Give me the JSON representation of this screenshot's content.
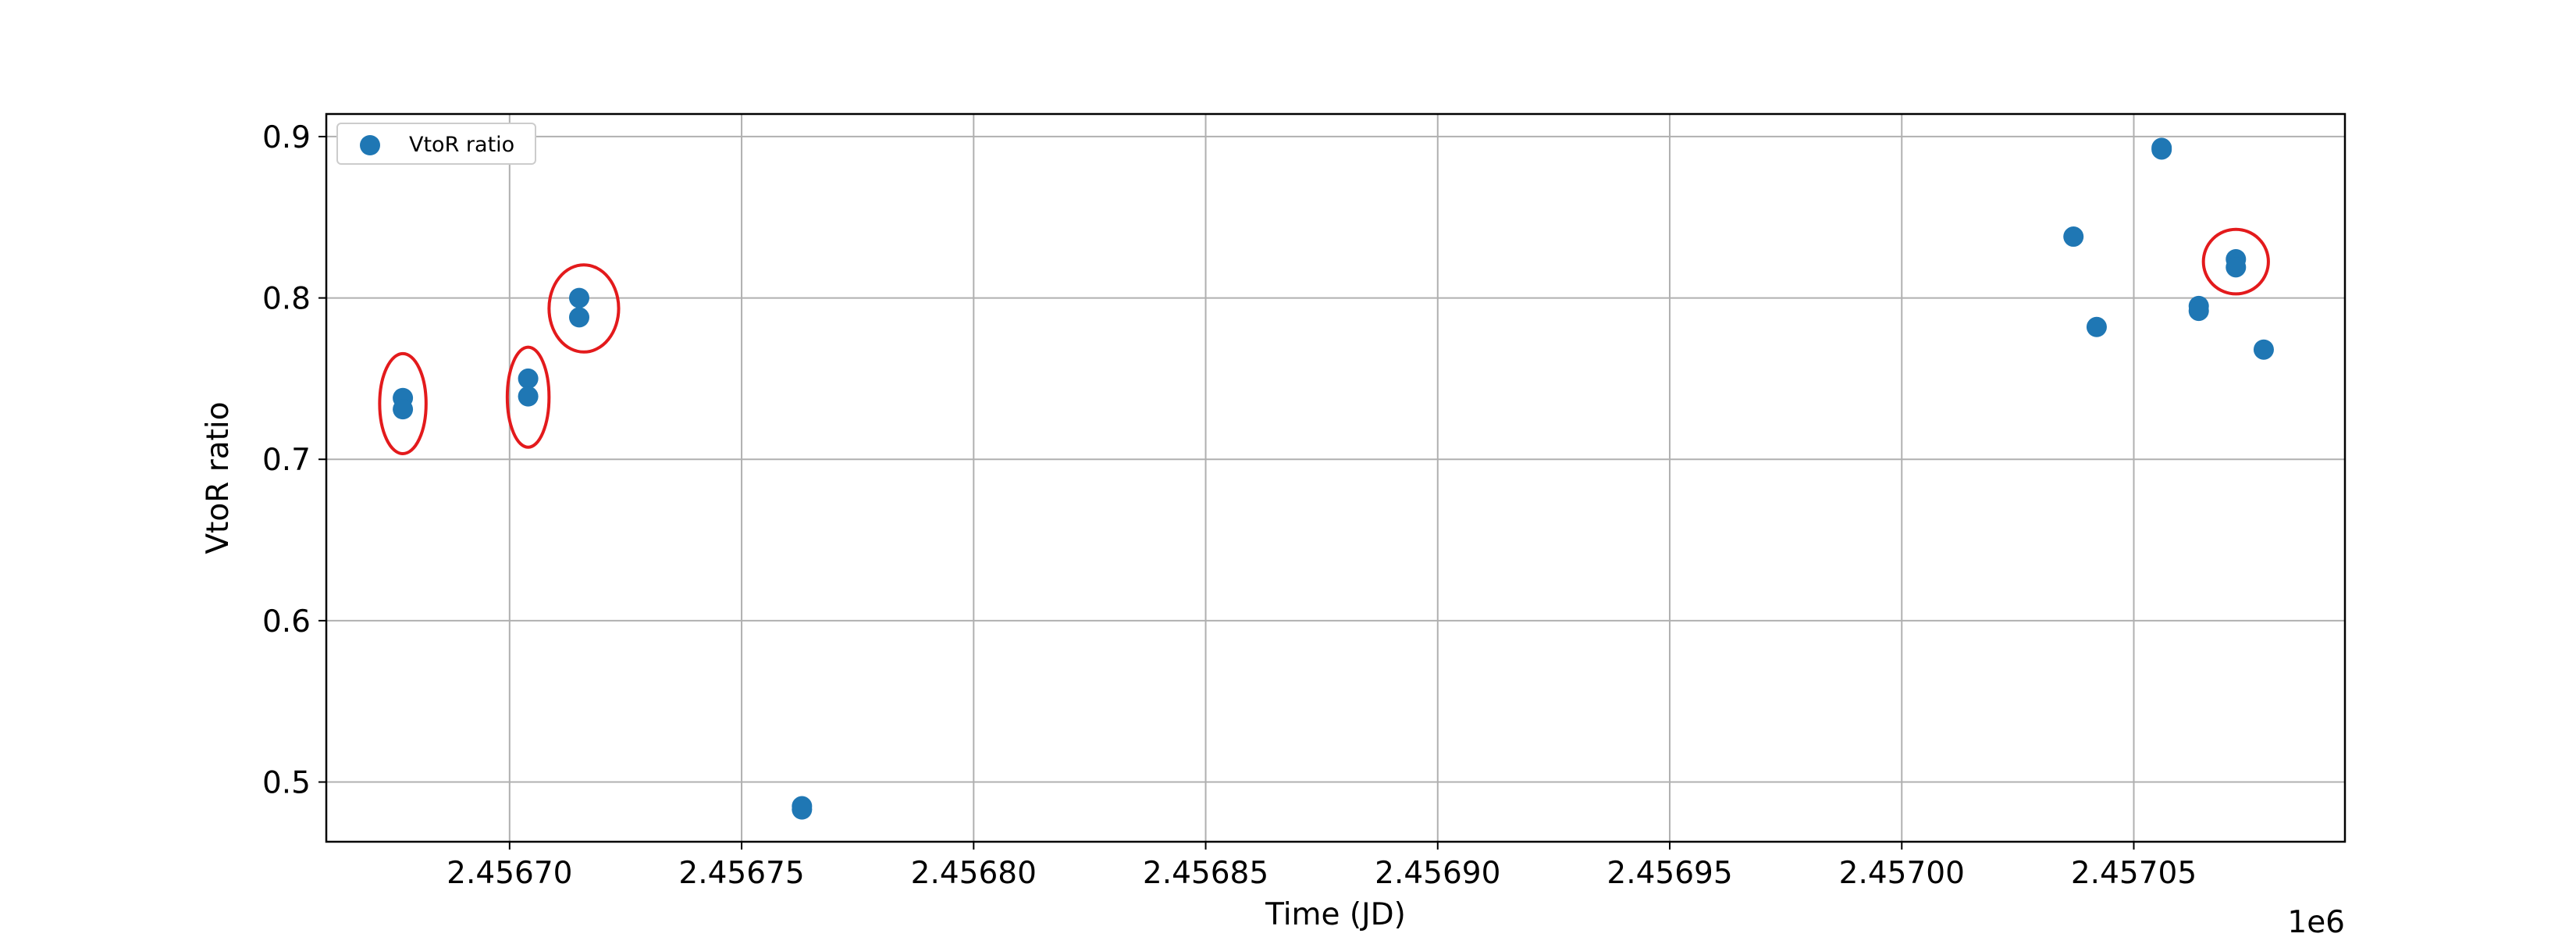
{
  "chart_data": {
    "type": "scatter",
    "xlabel": "Time (JD)",
    "ylabel": "VtoR ratio",
    "x_offset_label": "1e6",
    "xlim": [
      2456660.5,
      2457095.5
    ],
    "ylim": [
      0.463,
      0.914
    ],
    "x_ticks": [
      2456700,
      2456750,
      2456800,
      2456850,
      2456900,
      2456950,
      2457000,
      2457050
    ],
    "x_tick_labels": [
      "2.45670",
      "2.45675",
      "2.45680",
      "2.45685",
      "2.45690",
      "2.45695",
      "2.45700",
      "2.45705"
    ],
    "y_ticks": [
      0.5,
      0.6,
      0.7,
      0.8,
      0.9
    ],
    "y_tick_labels": [
      "0.5",
      "0.6",
      "0.7",
      "0.8",
      "0.9"
    ],
    "grid": true,
    "legend_position": "top-left",
    "series": [
      {
        "name": "VtoR ratio",
        "color": "#1f77b4",
        "x": [
          2456677,
          2456677,
          2456704,
          2456704,
          2456715,
          2456715,
          2456763,
          2456763,
          2457037,
          2457042,
          2457056,
          2457056,
          2457064,
          2457064,
          2457072,
          2457072,
          2457078
        ],
        "y": [
          0.738,
          0.731,
          0.75,
          0.739,
          0.8,
          0.788,
          0.485,
          0.483,
          0.838,
          0.782,
          0.893,
          0.892,
          0.795,
          0.792,
          0.824,
          0.819,
          0.768
        ]
      }
    ],
    "annotations": [
      {
        "shape": "ellipse",
        "color": "#e31a1c",
        "x": 2456677,
        "y": 0.7345,
        "rx": 5,
        "ry": 0.031
      },
      {
        "shape": "ellipse",
        "color": "#e31a1c",
        "x": 2456704,
        "y": 0.7385,
        "rx": 4.5,
        "ry": 0.031
      },
      {
        "shape": "ellipse",
        "color": "#e31a1c",
        "x": 2456716,
        "y": 0.7935,
        "rx": 7.5,
        "ry": 0.027
      },
      {
        "shape": "ellipse",
        "color": "#e31a1c",
        "x": 2457072,
        "y": 0.8225,
        "rx": 7,
        "ry": 0.02
      }
    ]
  }
}
